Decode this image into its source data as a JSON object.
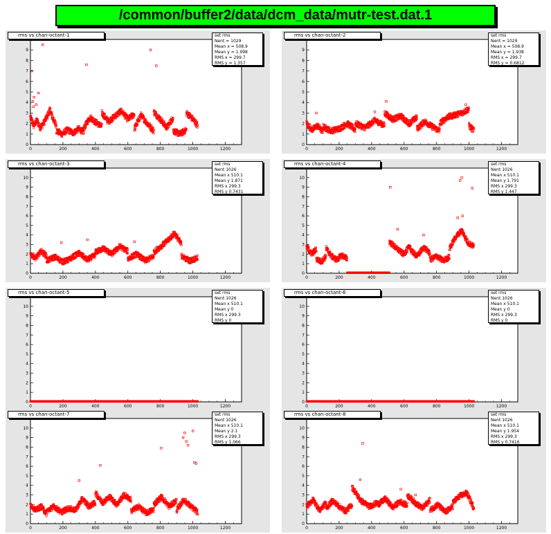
{
  "title": "/common/buffer2/data/dcm_data/mutr-test.dat.1",
  "colors": {
    "marker": "#ff0000",
    "title_bg": "#00ff00",
    "pad_bg": "#e5e5e5"
  },
  "chart_data": [
    {
      "type": "scatter",
      "title": "rms vs chan-octant-1",
      "stats": [
        [
          "",
          "set rms"
        ],
        [
          "Nent",
          "= 1029"
        ],
        [
          "Mean x",
          "= 508.9"
        ],
        [
          "Mean y",
          "= 1.998"
        ],
        [
          "RMS x",
          "= 299.7"
        ],
        [
          "RMS y",
          "= 1.357"
        ]
      ],
      "xlim": [
        0,
        1300
      ],
      "ylim": [
        0,
        10
      ],
      "xticks": [
        0,
        200,
        400,
        600,
        800,
        1000,
        1200
      ],
      "yticks": [
        0,
        1,
        2,
        3,
        4,
        5,
        6,
        7,
        8,
        9,
        10
      ],
      "segments": [
        {
          "x0": 0,
          "x1": 80,
          "levels": [
            2.6,
            1.8,
            2.3,
            1.6,
            2.0
          ]
        },
        {
          "x0": 80,
          "x1": 160,
          "levels": [
            2.0,
            2.6,
            3.3,
            2.4,
            1.8
          ]
        },
        {
          "x0": 160,
          "x1": 330,
          "levels": [
            1.3,
            1.0,
            1.4,
            1.1,
            1.5,
            1.2
          ]
        },
        {
          "x0": 330,
          "x1": 440,
          "levels": [
            1.6,
            2.6,
            2.1,
            1.7
          ]
        },
        {
          "x0": 440,
          "x1": 640,
          "levels": [
            3.0,
            2.2,
            2.7,
            3.2,
            2.4,
            2.9
          ]
        },
        {
          "x0": 640,
          "x1": 760,
          "levels": [
            1.5,
            2.8,
            2.0,
            1.3
          ]
        },
        {
          "x0": 760,
          "x1": 880,
          "levels": [
            3.1,
            2.4,
            1.6,
            2.6
          ]
        },
        {
          "x0": 880,
          "x1": 960,
          "levels": [
            1.3,
            1.0,
            1.4
          ]
        },
        {
          "x0": 960,
          "x1": 1030,
          "levels": [
            3.0,
            2.7,
            2.3,
            1.8
          ]
        }
      ],
      "points": [
        [
          15,
          4.1
        ],
        [
          18,
          3.6
        ],
        [
          22,
          4.5
        ],
        [
          35,
          3.8
        ],
        [
          50,
          4.9
        ],
        [
          75,
          9.5
        ],
        [
          345,
          7.6
        ],
        [
          740,
          9.0
        ],
        [
          775,
          7.5
        ],
        [
          8,
          7.0
        ]
      ]
    },
    {
      "type": "scatter",
      "title": "rms vs chan-octant-2",
      "stats": [
        [
          "",
          "set rms"
        ],
        [
          "Nent",
          "= 1029"
        ],
        [
          "Mean x",
          "= 508.9"
        ],
        [
          "Mean y",
          "= 1.938"
        ],
        [
          "RMS x",
          "= 299.7"
        ],
        [
          "RMS y",
          "= 0.6812"
        ]
      ],
      "xlim": [
        0,
        1300
      ],
      "ylim": [
        0,
        10
      ],
      "xticks": [
        0,
        200,
        400,
        600,
        800,
        1000,
        1200
      ],
      "yticks": [
        0,
        1,
        2,
        3,
        4,
        5,
        6,
        7,
        8,
        9,
        10
      ],
      "segments": [
        {
          "x0": 0,
          "x1": 100,
          "levels": [
            2.0,
            1.4,
            1.8,
            1.2
          ]
        },
        {
          "x0": 100,
          "x1": 300,
          "levels": [
            1.7,
            1.3,
            1.5,
            2.0,
            1.4
          ]
        },
        {
          "x0": 300,
          "x1": 480,
          "levels": [
            2.0,
            1.6,
            2.3,
            1.8
          ]
        },
        {
          "x0": 480,
          "x1": 680,
          "levels": [
            3.0,
            2.4,
            2.7,
            2.0,
            2.6
          ]
        },
        {
          "x0": 680,
          "x1": 820,
          "levels": [
            1.5,
            2.2,
            1.7,
            1.3
          ]
        },
        {
          "x0": 820,
          "x1": 1000,
          "levels": [
            2.0,
            2.6,
            2.8,
            3.0,
            3.4
          ]
        },
        {
          "x0": 1000,
          "x1": 1030,
          "levels": [
            1.8,
            1.3
          ]
        }
      ],
      "points": [
        [
          490,
          4.1
        ],
        [
          980,
          3.8
        ],
        [
          60,
          3.0
        ],
        [
          420,
          3.1
        ]
      ]
    },
    {
      "type": "scatter",
      "title": "rms vs chan-octant-3",
      "stats": [
        [
          "",
          "set rms"
        ],
        [
          "Nent",
          "1026"
        ],
        [
          "Mean x",
          "510.1"
        ],
        [
          "Mean y",
          "1.871"
        ],
        [
          "RMS x",
          "299.3"
        ],
        [
          "RMS y",
          "0.7431"
        ]
      ],
      "xlim": [
        0,
        1300
      ],
      "ylim": [
        0,
        11
      ],
      "xticks": [
        0,
        200,
        400,
        600,
        800,
        1000,
        1200
      ],
      "yticks": [
        0,
        1,
        2,
        3,
        4,
        5,
        6,
        7,
        8,
        9,
        10,
        11
      ],
      "segments": [
        {
          "x0": 0,
          "x1": 100,
          "levels": [
            2.0,
            1.6,
            2.3,
            1.8
          ]
        },
        {
          "x0": 100,
          "x1": 250,
          "levels": [
            1.3,
            1.7,
            1.2,
            1.5
          ]
        },
        {
          "x0": 250,
          "x1": 400,
          "levels": [
            1.6,
            2.1,
            1.4,
            1.9
          ]
        },
        {
          "x0": 400,
          "x1": 600,
          "levels": [
            2.2,
            2.6,
            2.0,
            2.8,
            2.3
          ]
        },
        {
          "x0": 600,
          "x1": 760,
          "levels": [
            1.5,
            2.0,
            1.3,
            1.8
          ]
        },
        {
          "x0": 760,
          "x1": 930,
          "levels": [
            2.2,
            2.8,
            3.4,
            4.2,
            3.0
          ]
        },
        {
          "x0": 930,
          "x1": 1030,
          "levels": [
            1.8,
            1.3,
            1.6
          ]
        }
      ],
      "points": [
        [
          190,
          3.2
        ],
        [
          350,
          3.5
        ],
        [
          640,
          3.3
        ],
        [
          820,
          3.3
        ]
      ]
    },
    {
      "type": "scatter",
      "title": "rms vs chan-octant-4",
      "stats": [
        [
          "",
          "set rms"
        ],
        [
          "Nent",
          "1026"
        ],
        [
          "Mean x",
          "510.1"
        ],
        [
          "Mean y",
          "1.791"
        ],
        [
          "RMS x",
          "299.3"
        ],
        [
          "RMS y",
          "1.447"
        ]
      ],
      "xlim": [
        0,
        1300
      ],
      "ylim": [
        0,
        11
      ],
      "xticks": [
        0,
        200,
        400,
        600,
        800,
        1000,
        1200
      ],
      "yticks": [
        0,
        1,
        2,
        3,
        4,
        5,
        6,
        7,
        8,
        9,
        10,
        11
      ],
      "segments": [
        {
          "x0": 0,
          "x1": 60,
          "levels": [
            2.8,
            2.0,
            2.5
          ]
        },
        {
          "x0": 60,
          "x1": 120,
          "levels": [
            1.5,
            1.2,
            1.8
          ]
        },
        {
          "x0": 120,
          "x1": 250,
          "levels": [
            2.6,
            1.8,
            1.4,
            1.9,
            1.5
          ]
        },
        {
          "x0": 250,
          "x1": 510,
          "levels": [
            0.05,
            0.05
          ]
        },
        {
          "x0": 510,
          "x1": 640,
          "levels": [
            3.3,
            2.6,
            2.0,
            2.9
          ]
        },
        {
          "x0": 640,
          "x1": 760,
          "levels": [
            2.4,
            1.8,
            2.7,
            2.1
          ]
        },
        {
          "x0": 760,
          "x1": 880,
          "levels": [
            1.4,
            1.8,
            1.3,
            1.7
          ]
        },
        {
          "x0": 880,
          "x1": 1030,
          "levels": [
            2.6,
            3.8,
            4.5,
            3.2,
            2.8
          ]
        }
      ],
      "points": [
        [
          515,
          9.0
        ],
        [
          945,
          9.7
        ],
        [
          955,
          10.0
        ],
        [
          1020,
          8.9
        ],
        [
          930,
          5.8
        ],
        [
          960,
          6.0
        ],
        [
          560,
          4.6
        ],
        [
          720,
          4.0
        ]
      ]
    },
    {
      "type": "scatter",
      "title": "rms vs chan-octant-5",
      "stats": [
        [
          "",
          "set rms"
        ],
        [
          "Nent",
          "1026"
        ],
        [
          "Mean x",
          "510.1"
        ],
        [
          "Mean y",
          "0"
        ],
        [
          "RMS x",
          "299.3"
        ],
        [
          "RMS y",
          "0"
        ]
      ],
      "xlim": [
        0,
        1300
      ],
      "ylim": [
        0,
        11
      ],
      "xticks": [
        0,
        200,
        400,
        600,
        800,
        1000,
        1200
      ],
      "yticks": [
        0,
        1,
        2,
        3,
        4,
        5,
        6,
        7,
        8,
        9,
        10,
        11
      ],
      "segments": [
        {
          "x0": 0,
          "x1": 1030,
          "levels": [
            0.05,
            0.05
          ]
        }
      ],
      "points": []
    },
    {
      "type": "scatter",
      "title": "rms vs chan-octant-6",
      "stats": [
        [
          "",
          "set rms"
        ],
        [
          "Nent",
          "1026"
        ],
        [
          "Mean x",
          "510.1"
        ],
        [
          "Mean y",
          "0"
        ],
        [
          "RMS x",
          "299.3"
        ],
        [
          "RMS y",
          "0"
        ]
      ],
      "xlim": [
        0,
        1300
      ],
      "ylim": [
        0,
        11
      ],
      "xticks": [
        0,
        200,
        400,
        600,
        800,
        1000,
        1200
      ],
      "yticks": [
        0,
        1,
        2,
        3,
        4,
        5,
        6,
        7,
        8,
        9,
        10,
        11
      ],
      "segments": [
        {
          "x0": 0,
          "x1": 1030,
          "levels": [
            0.05,
            0.05
          ]
        }
      ],
      "points": []
    },
    {
      "type": "scatter",
      "title": "rms vs chan-octant-7",
      "stats": [
        [
          "",
          "set rms"
        ],
        [
          "Nent",
          "1026"
        ],
        [
          "Mean x",
          "510.1"
        ],
        [
          "Mean y",
          "2.1"
        ],
        [
          "RMS x",
          "299.3"
        ],
        [
          "RMS y",
          "1.066"
        ]
      ],
      "xlim": [
        0,
        1300
      ],
      "ylim": [
        0,
        11
      ],
      "xticks": [
        0,
        200,
        400,
        600,
        800,
        1000,
        1200
      ],
      "yticks": [
        0,
        1,
        2,
        3,
        4,
        5,
        6,
        7,
        8,
        9,
        10,
        11
      ],
      "segments": [
        {
          "x0": 0,
          "x1": 100,
          "levels": [
            2.0,
            1.4,
            1.8,
            1.0
          ]
        },
        {
          "x0": 100,
          "x1": 280,
          "levels": [
            1.3,
            1.8,
            1.2,
            1.6,
            1.4
          ]
        },
        {
          "x0": 280,
          "x1": 400,
          "levels": [
            1.5,
            2.6,
            1.8,
            2.2
          ]
        },
        {
          "x0": 400,
          "x1": 620,
          "levels": [
            3.2,
            2.2,
            2.8,
            2.0,
            3.0,
            2.5
          ]
        },
        {
          "x0": 620,
          "x1": 760,
          "levels": [
            1.3,
            1.8,
            1.1,
            1.5
          ]
        },
        {
          "x0": 760,
          "x1": 900,
          "levels": [
            2.0,
            2.8,
            1.8,
            2.4
          ]
        },
        {
          "x0": 900,
          "x1": 1030,
          "levels": [
            1.4,
            2.5,
            1.8,
            1.2
          ]
        }
      ],
      "points": [
        [
          300,
          4.5
        ],
        [
          430,
          6.1
        ],
        [
          805,
          7.9
        ],
        [
          940,
          9.0
        ],
        [
          950,
          9.5
        ],
        [
          960,
          8.6
        ],
        [
          970,
          8.2
        ],
        [
          1000,
          9.7
        ],
        [
          1010,
          6.4
        ],
        [
          1020,
          6.3
        ]
      ]
    },
    {
      "type": "scatter",
      "title": "rms vs chan-octant-8",
      "stats": [
        [
          "",
          "set rms"
        ],
        [
          "Nent",
          "1026"
        ],
        [
          "Mean x",
          "510.1"
        ],
        [
          "Mean y",
          "1.954"
        ],
        [
          "RMS x",
          "299.3"
        ],
        [
          "RMS y",
          "0.7416"
        ]
      ],
      "xlim": [
        0,
        1300
      ],
      "ylim": [
        0,
        11
      ],
      "xticks": [
        0,
        200,
        400,
        600,
        800,
        1000,
        1200
      ],
      "yticks": [
        0,
        1,
        2,
        3,
        4,
        5,
        6,
        7,
        8,
        9,
        10,
        11
      ],
      "segments": [
        {
          "x0": 0,
          "x1": 120,
          "levels": [
            1.8,
            2.5,
            1.4,
            2.2
          ]
        },
        {
          "x0": 120,
          "x1": 280,
          "levels": [
            1.6,
            2.4,
            1.8,
            1.3,
            2.0
          ]
        },
        {
          "x0": 280,
          "x1": 440,
          "levels": [
            3.8,
            2.4,
            1.8,
            2.2
          ]
        },
        {
          "x0": 440,
          "x1": 620,
          "levels": [
            2.0,
            2.6,
            1.7,
            2.3,
            1.9
          ]
        },
        {
          "x0": 620,
          "x1": 760,
          "levels": [
            3.0,
            2.2,
            1.6,
            2.5
          ]
        },
        {
          "x0": 760,
          "x1": 900,
          "levels": [
            1.4,
            2.0,
            1.2,
            1.8
          ]
        },
        {
          "x0": 900,
          "x1": 1030,
          "levels": [
            2.2,
            2.9,
            3.2,
            1.6
          ]
        }
      ],
      "points": [
        [
          345,
          8.4
        ],
        [
          330,
          4.6
        ],
        [
          580,
          3.6
        ],
        [
          670,
          3.0
        ]
      ]
    }
  ]
}
